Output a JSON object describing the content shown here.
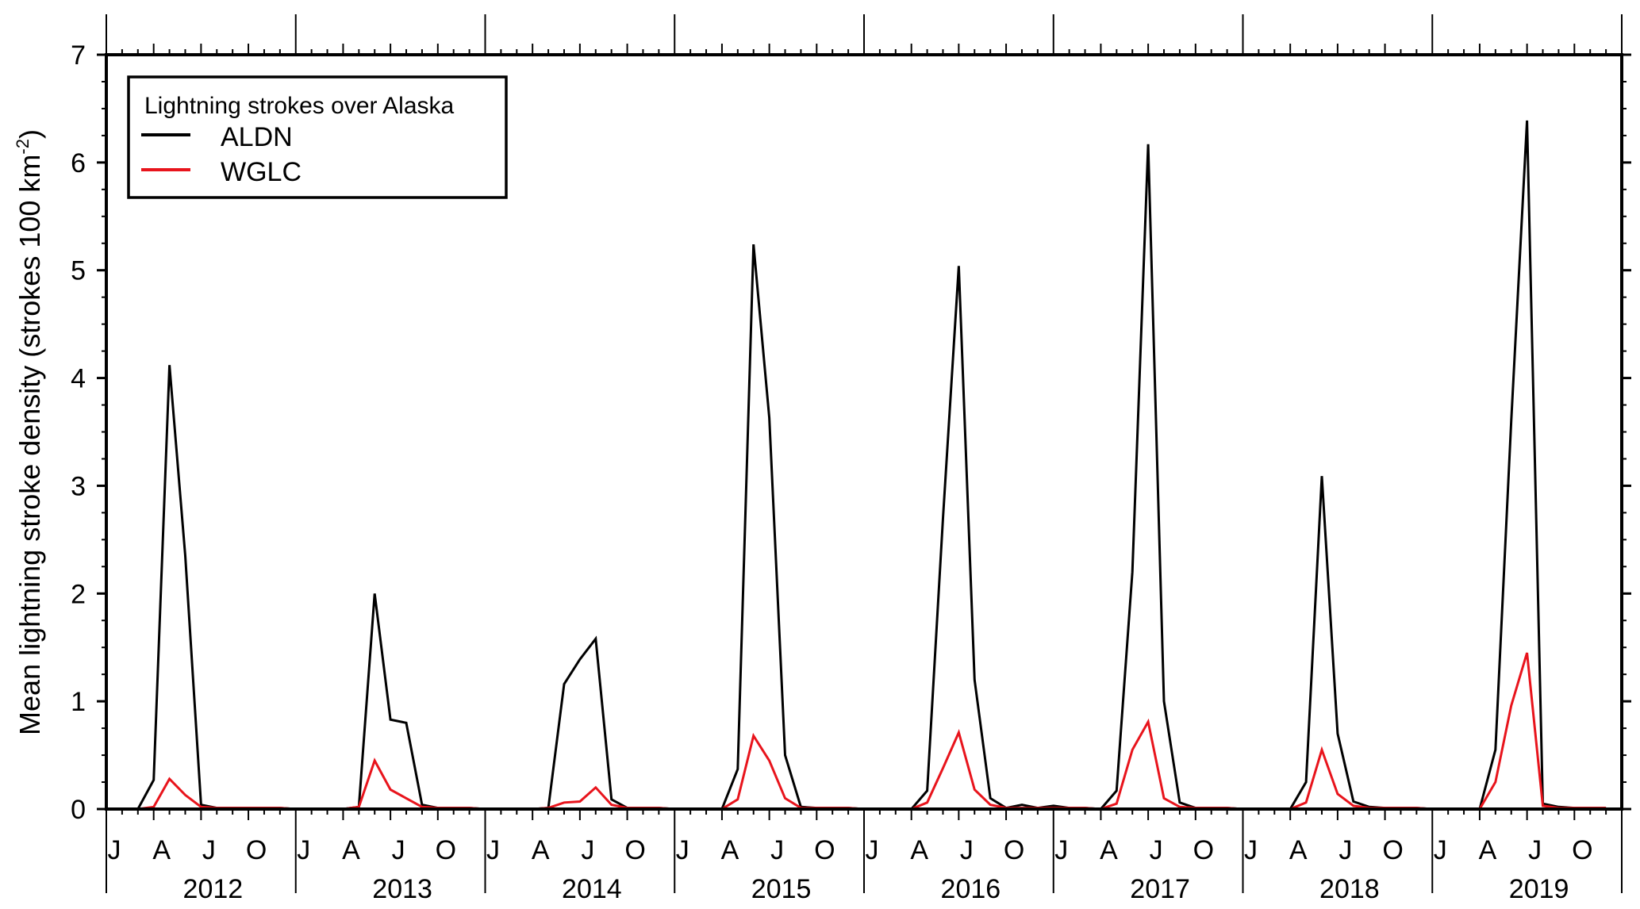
{
  "chart_data": {
    "type": "line",
    "ylabel": "Mean lightning stroke density (strokes 100 km",
    "ylabel_sup": "-2",
    "ylabel_close": ")",
    "ylim": [
      0,
      7
    ],
    "yticks": [
      "0",
      "1",
      "2",
      "3",
      "4",
      "5",
      "6",
      "7"
    ],
    "x_start": "2012-01",
    "x_end": "2019-12",
    "month_tick_labels": [
      "J",
      "A",
      "J",
      "O"
    ],
    "years": [
      "2012",
      "2013",
      "2014",
      "2015",
      "2016",
      "2017",
      "2018",
      "2019"
    ],
    "legend": {
      "title": "Lightning strokes over Alaska",
      "position": "top-left"
    },
    "series": [
      {
        "name": "ALDN",
        "color": "#000000",
        "values": [
          0,
          0,
          0,
          0.27,
          4.12,
          2.35,
          0.04,
          0.01,
          0.01,
          0.01,
          0.01,
          0.01,
          0,
          0,
          0,
          0,
          0.02,
          2.0,
          0.83,
          0.8,
          0.04,
          0.01,
          0.01,
          0.01,
          0,
          0,
          0,
          0,
          0.01,
          1.16,
          1.39,
          1.58,
          0.09,
          0.01,
          0.01,
          0.01,
          0,
          0,
          0,
          0,
          0.37,
          5.24,
          3.63,
          0.5,
          0.02,
          0.01,
          0.01,
          0.01,
          0,
          0,
          0,
          0,
          0.17,
          2.7,
          5.04,
          1.2,
          0.1,
          0.01,
          0.04,
          0.01,
          0.03,
          0.01,
          0.01,
          0,
          0.17,
          2.2,
          6.17,
          1.0,
          0.06,
          0.01,
          0.01,
          0.01,
          0,
          0,
          0,
          0,
          0.25,
          3.09,
          0.7,
          0.07,
          0.02,
          0.01,
          0.01,
          0.01,
          0,
          0,
          0,
          0,
          0.55,
          3.6,
          6.39,
          0.05,
          0.02,
          0.01,
          0.01,
          0.01
        ]
      },
      {
        "name": "WGLC",
        "color": "#e8141c",
        "values": [
          0,
          0,
          0,
          0.02,
          0.28,
          0.13,
          0.02,
          0.01,
          0.01,
          0.01,
          0.01,
          0.01,
          0,
          0,
          0,
          0,
          0.02,
          0.45,
          0.18,
          0.1,
          0.02,
          0.01,
          0.01,
          0.01,
          0,
          0,
          0,
          0,
          0.01,
          0.06,
          0.07,
          0.2,
          0.04,
          0.01,
          0.01,
          0.01,
          0,
          0,
          0,
          0,
          0.09,
          0.68,
          0.45,
          0.1,
          0.01,
          0.01,
          0.01,
          0.01,
          0,
          0,
          0,
          0,
          0.06,
          0.38,
          0.71,
          0.18,
          0.04,
          0.01,
          0.01,
          0.01,
          0.01,
          0.01,
          0.01,
          0,
          0.05,
          0.55,
          0.81,
          0.1,
          0.02,
          0.01,
          0.01,
          0.01,
          0,
          0,
          0,
          0,
          0.06,
          0.55,
          0.14,
          0.03,
          0.01,
          0.01,
          0.01,
          0.01,
          0,
          0,
          0,
          0,
          0.25,
          0.96,
          1.45,
          0.03,
          0.01,
          0.01,
          0.01,
          0.01
        ]
      }
    ]
  }
}
